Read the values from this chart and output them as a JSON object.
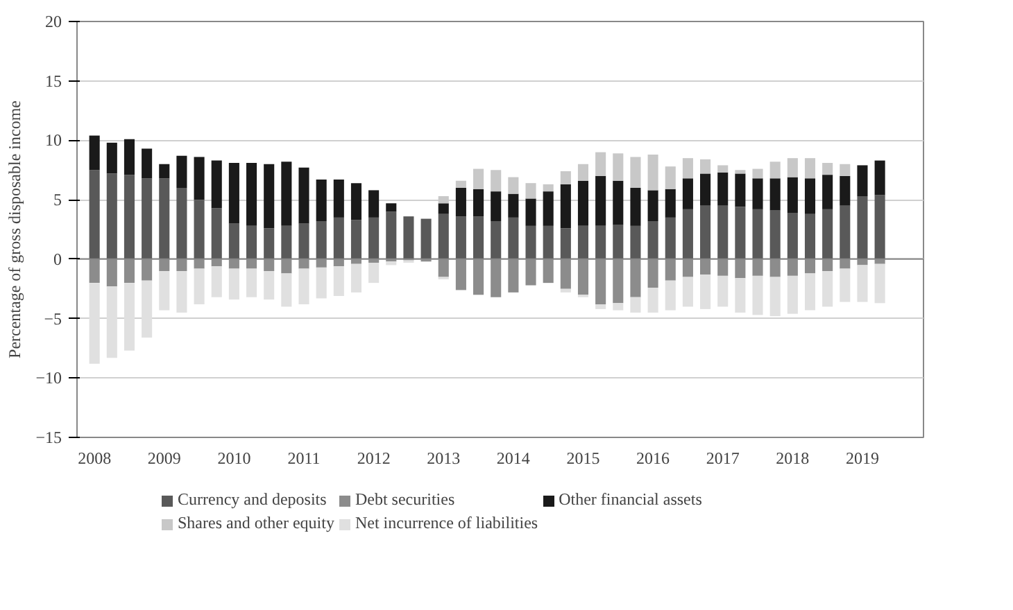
{
  "chart_data": {
    "type": "bar",
    "stacked": true,
    "ylabel": "Percentage of gross disposable income",
    "categories": [
      "2008",
      null,
      null,
      null,
      "2009",
      null,
      null,
      null,
      "2010",
      null,
      null,
      null,
      "2011",
      null,
      null,
      null,
      "2012",
      null,
      null,
      null,
      "2013",
      null,
      null,
      null,
      "2014",
      null,
      null,
      null,
      "2015",
      null,
      null,
      null,
      "2016",
      null,
      null,
      null,
      "2017",
      null,
      null,
      null,
      "2018",
      null,
      null,
      null,
      "2019",
      null
    ],
    "ylim": [
      -15,
      20
    ],
    "yticks": [
      -15,
      -10,
      -5,
      0,
      5,
      10,
      15,
      20
    ],
    "grid": "y",
    "legend": "bottom",
    "series": [
      {
        "name": "Currency and deposits",
        "color": "#595959",
        "values": [
          7.5,
          7.2,
          7.1,
          6.8,
          6.8,
          6.0,
          5.0,
          4.3,
          3.0,
          2.8,
          2.6,
          2.8,
          3.0,
          3.2,
          3.5,
          3.3,
          3.5,
          4.0,
          3.6,
          3.4,
          3.8,
          3.6,
          3.6,
          3.2,
          3.5,
          2.8,
          2.8,
          2.6,
          2.8,
          2.8,
          2.9,
          2.8,
          3.2,
          3.5,
          4.2,
          4.5,
          4.5,
          4.4,
          4.2,
          4.1,
          3.9,
          3.8,
          4.2,
          4.5,
          5.3,
          5.4
        ]
      },
      {
        "name": "Debt securities",
        "color": "#8c8c8c",
        "values": [
          -2.0,
          -2.3,
          -2.0,
          -1.8,
          -1.0,
          -1.0,
          -0.8,
          -0.6,
          -0.8,
          -0.8,
          -1.0,
          -1.2,
          -0.8,
          -0.7,
          -0.6,
          -0.4,
          -0.3,
          -0.2,
          -0.1,
          -0.2,
          -1.5,
          -2.6,
          -3.0,
          -3.2,
          -2.8,
          -2.2,
          -2.0,
          -2.5,
          -3.0,
          -3.8,
          -3.7,
          -3.2,
          -2.4,
          -1.8,
          -1.5,
          -1.3,
          -1.4,
          -1.6,
          -1.4,
          -1.5,
          -1.4,
          -1.2,
          -1.0,
          -0.8,
          -0.5,
          -0.4
        ]
      },
      {
        "name": "Other financial assets",
        "color": "#1a1a1a",
        "values": [
          2.9,
          2.6,
          3.0,
          2.5,
          1.2,
          2.7,
          3.6,
          4.0,
          5.1,
          5.3,
          5.4,
          5.4,
          4.7,
          3.5,
          3.2,
          3.1,
          2.3,
          0.7,
          0.0,
          0.0,
          0.9,
          2.4,
          2.3,
          2.5,
          2.0,
          2.3,
          2.9,
          3.7,
          3.8,
          4.2,
          3.7,
          3.2,
          2.6,
          2.4,
          2.6,
          2.7,
          2.8,
          2.8,
          2.6,
          2.7,
          3.0,
          3.0,
          2.9,
          2.5,
          2.6,
          2.9
        ]
      },
      {
        "name": "Shares and other equity",
        "color": "#c8c8c8",
        "values": [
          null,
          null,
          null,
          null,
          null,
          null,
          null,
          null,
          null,
          null,
          null,
          null,
          null,
          null,
          null,
          null,
          null,
          null,
          null,
          null,
          0.6,
          0.6,
          1.7,
          1.8,
          1.4,
          1.3,
          0.6,
          1.1,
          1.4,
          2.0,
          2.3,
          2.6,
          3.0,
          1.9,
          1.7,
          1.2,
          0.6,
          0.3,
          0.8,
          1.4,
          1.6,
          1.7,
          1.0,
          1.0,
          null,
          null
        ]
      },
      {
        "name": "Net incurrence of liabilities",
        "color": "#e0e0e0",
        "values": [
          -6.8,
          -6.0,
          -5.7,
          -4.8,
          -3.3,
          -3.5,
          -3.0,
          -2.6,
          -2.6,
          -2.4,
          -2.4,
          -2.8,
          -3.0,
          -2.6,
          -2.5,
          -2.4,
          -1.7,
          -0.3,
          -0.2,
          null,
          -0.2,
          null,
          null,
          null,
          null,
          null,
          null,
          -0.3,
          -0.2,
          -0.4,
          -0.6,
          -1.3,
          -2.1,
          -2.5,
          -2.5,
          -2.9,
          -2.6,
          -2.9,
          -3.3,
          -3.3,
          -3.2,
          -3.1,
          -3.0,
          -2.8,
          -3.1,
          -3.3
        ]
      }
    ]
  }
}
